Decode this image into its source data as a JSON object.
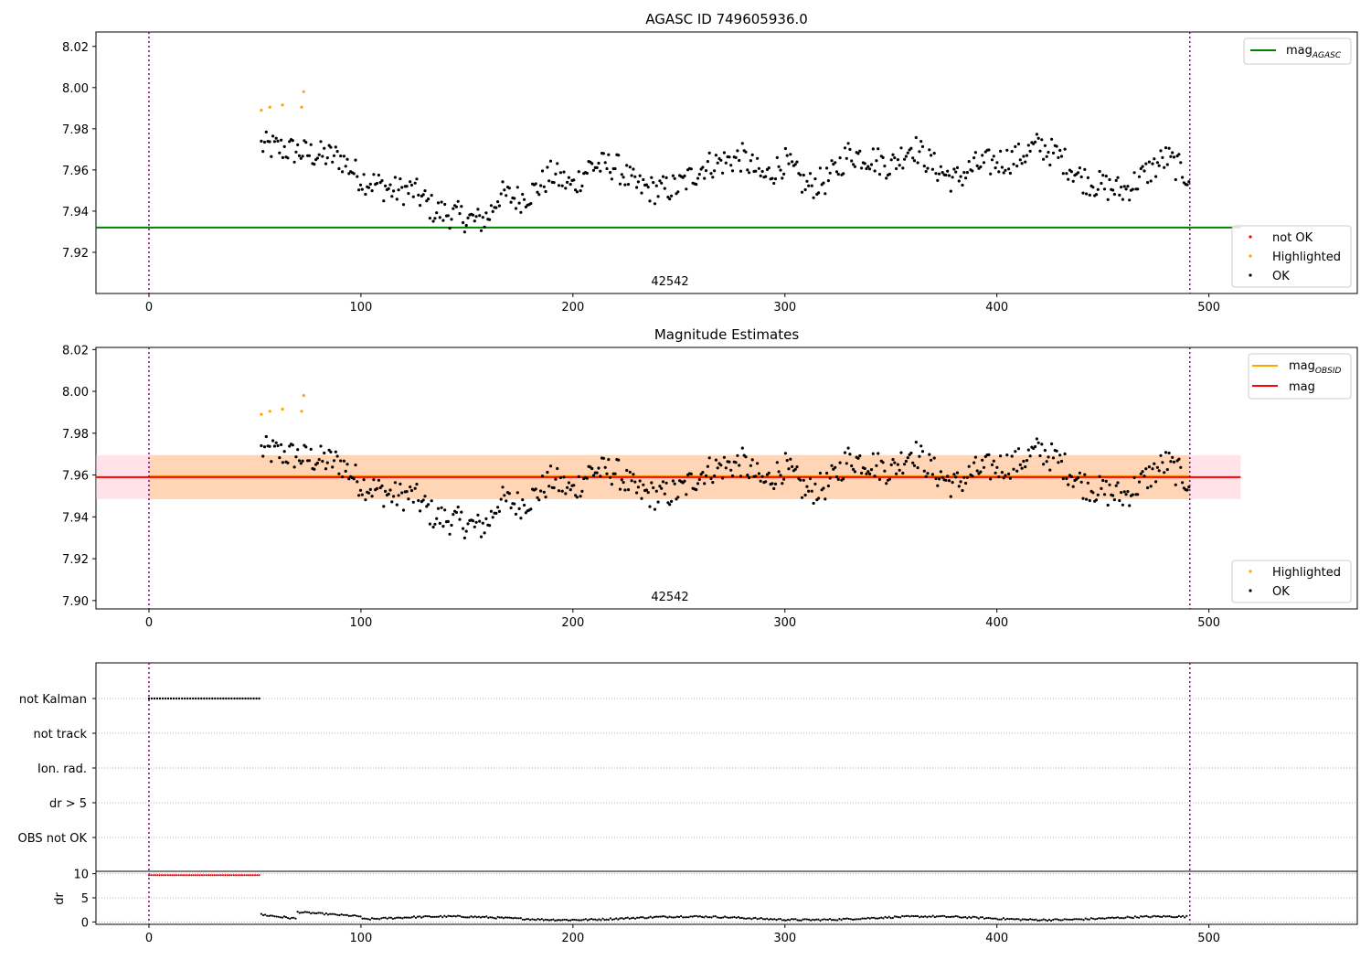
{
  "chart_data": [
    {
      "type": "scatter",
      "title": "AGASC ID 749605936.0",
      "xlim": [
        -25,
        570
      ],
      "ylim": [
        7.9,
        8.027
      ],
      "xticks": [
        0,
        100,
        200,
        300,
        400,
        500
      ],
      "yticks": [
        7.92,
        7.94,
        7.96,
        7.98,
        8.0,
        8.02
      ],
      "obsid_label": "42542",
      "obs_boundaries_x": [
        0,
        491
      ],
      "reference_lines": [
        {
          "name": "mag",
          "subscript": "AGASC",
          "y": 7.932,
          "x_range": [
            -25,
            515
          ],
          "color": "#008000"
        }
      ],
      "legend_lines": [
        {
          "name": "mag",
          "subscript": "AGASC",
          "color": "#008000"
        }
      ],
      "legend_markers": [
        {
          "name": "not OK",
          "color": "#ff0000"
        },
        {
          "name": "Highlighted",
          "color": "#ffa500"
        },
        {
          "name": "OK",
          "color": "#000000"
        }
      ],
      "grid": false
    },
    {
      "type": "scatter",
      "title": "Magnitude Estimates",
      "xlim": [
        -25,
        570
      ],
      "ylim": [
        7.896,
        8.021
      ],
      "xticks": [
        0,
        100,
        200,
        300,
        400,
        500
      ],
      "yticks": [
        7.9,
        7.92,
        7.94,
        7.96,
        7.98,
        8.0,
        8.02
      ],
      "obsid_label": "42542",
      "obs_boundaries_x": [
        0,
        491
      ],
      "bands": [
        {
          "name": "mag",
          "x_range": [
            -25,
            515
          ],
          "y_range": [
            7.9485,
            7.9695
          ],
          "color": "#ffc0cb",
          "opacity": 0.45
        },
        {
          "name": "mag OBSID",
          "x_range": [
            0,
            491
          ],
          "y_range": [
            7.9485,
            7.9695
          ],
          "color": "#ffa500",
          "opacity": 0.22
        }
      ],
      "reference_lines": [
        {
          "name": "mag",
          "subscript": "OBSID",
          "y": 7.9595,
          "x_range": [
            0,
            491
          ],
          "color": "#ffa500"
        },
        {
          "name": "mag",
          "subscript": "",
          "y": 7.959,
          "x_range": [
            -25,
            515
          ],
          "color": "#ff0000"
        }
      ],
      "legend_lines": [
        {
          "name": "mag",
          "subscript": "OBSID",
          "color": "#ffa500"
        },
        {
          "name": "mag",
          "subscript": "",
          "color": "#ff0000"
        }
      ],
      "legend_markers": [
        {
          "name": "Highlighted",
          "color": "#ffa500"
        },
        {
          "name": "OK",
          "color": "#000000"
        }
      ],
      "grid": false
    },
    {
      "type": "scatter",
      "title": "",
      "xlim": [
        -25,
        570
      ],
      "xticks": [
        0,
        100,
        200,
        300,
        400,
        500
      ],
      "flag_categories": [
        "not Kalman",
        "not track",
        "Ion. rad.",
        "dr > 5",
        "OBS not OK"
      ],
      "flag_segments": [
        {
          "flag": "not Kalman",
          "x_range": [
            0,
            52
          ]
        }
      ],
      "dr_ylabel": "dr",
      "dr_ylim": [
        -0.5,
        10.5
      ],
      "dr_yticks": [
        0,
        5,
        10
      ],
      "dr_segments": [
        {
          "x_range": [
            0,
            52
          ],
          "y": 9.7,
          "color": "#ff0000"
        },
        {
          "x_range": [
            53,
            490
          ],
          "color": "#000000"
        }
      ],
      "obs_boundaries_x": [
        0,
        491
      ],
      "grid": true
    }
  ],
  "colors": {
    "ok": "#000000",
    "highlighted": "#ffa500",
    "not_ok": "#ff0000",
    "boundary": "#800080",
    "agasc": "#008000"
  }
}
